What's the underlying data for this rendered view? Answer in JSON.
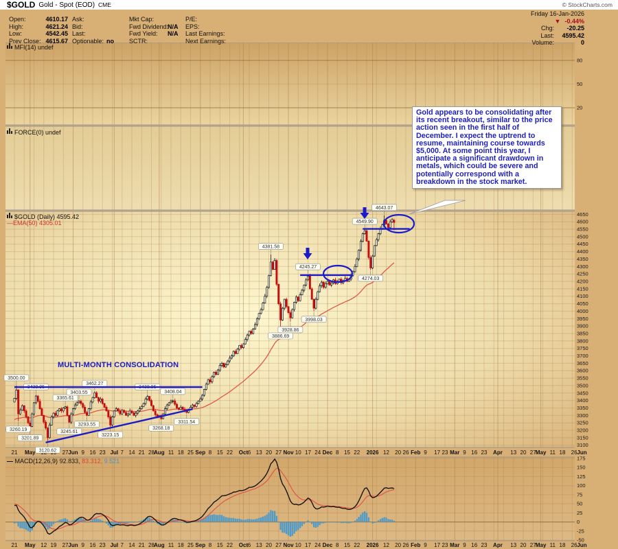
{
  "title": {
    "symbol": "$GOLD",
    "name": "Gold - Spot (EOD)",
    "exchange": "CME",
    "copyright": "© StockCharts.com"
  },
  "quote": {
    "date": "Friday 16-Jan-2026",
    "change_arrow": "▼",
    "change_pct": "-0.44%",
    "chg_label": "Chg:",
    "chg": "-20.25",
    "last_label": "Last:",
    "last": "4595.42",
    "volume_label": "Volume:",
    "volume": "0",
    "col1": [
      {
        "label": "Open:",
        "value": "4610.17"
      },
      {
        "label": "High:",
        "value": "4621.24"
      },
      {
        "label": "Low:",
        "value": "4542.45"
      },
      {
        "label": "Prev Close:",
        "value": "4615.67"
      }
    ],
    "col2": [
      {
        "label": "Ask:",
        "value": ""
      },
      {
        "label": "Bid:",
        "value": ""
      },
      {
        "label": "Last:",
        "value": ""
      },
      {
        "label": "Optionable:",
        "value": "no"
      }
    ],
    "col3": [
      {
        "label": "Mkt Cap:",
        "value": ""
      },
      {
        "label": "Fwd Dividend:",
        "value": "N/A"
      },
      {
        "label": "Fwd Yield:",
        "value": "N/A"
      },
      {
        "label": "SCTR:",
        "value": ""
      }
    ],
    "col4": [
      {
        "label": "P/E:",
        "value": ""
      },
      {
        "label": "EPS:",
        "value": ""
      },
      {
        "label": "Last Earnings:",
        "value": ""
      },
      {
        "label": "Next Earnings:",
        "value": ""
      }
    ]
  },
  "indicators": {
    "mfi": "MFI(14) undef",
    "force": "FORCE(0) undef",
    "main": "$GOLD (Daily) 4595.42",
    "ema_dash": "—",
    "ema": "EMA(50) 4305.01",
    "macd_dash": "—",
    "macd_name": "MACD(12,26,9)",
    "macd_val1": "92.833,",
    "macd_val2": "83.312,",
    "macd_val3": "9.521"
  },
  "annotations": {
    "consolidation_text": "MULTI-MONTH CONSOLIDATION",
    "callout_text": "Gold appears to be consolidating after its recent breakout, similar to the price action seen in the first half of December. I expect the uptrend to resume, maintaining course towards $5,000. At some point this year, I anticipate a significant drawdown in metals, which could be severe and potentially correspond with a breakdown in the stock market."
  },
  "colors": {
    "accent_blue": "#1b1bc8",
    "annotation_text_blue": "#1f1fbe",
    "candle_up_fill": "#fdfcf0",
    "candle_up_stroke": "#151515",
    "candle_down": "#c40f0f",
    "ema_line": "#dd5a4a",
    "macd_line": "#1a1208",
    "macd_signal": "#e25548",
    "macd_histogram": "#4e9ac9",
    "change_red": "#a80a1e",
    "grid": "#a87f48",
    "separator": "#969696",
    "label_box_fill": "#fffef2",
    "label_box_stroke": "#8a8a8a"
  },
  "chart_data": {
    "type": "candlestick",
    "symbol": "$GOLD",
    "timeframe": "Daily",
    "title": "$GOLD (Daily) 4595.42",
    "y_axis": {
      "min": 3100,
      "max": 4650,
      "step": 50
    },
    "mfi_axis": {
      "labels": [
        80,
        50,
        20
      ]
    },
    "macd_axis": {
      "min": -50,
      "max": 175,
      "step": 25
    },
    "overlays": {
      "ema_period": 50,
      "macd_params": [
        12,
        26,
        9
      ]
    },
    "first_open": 3390,
    "closes": [
      3415,
      3470,
      3310,
      3335,
      3365,
      3330,
      3290,
      3250,
      3225,
      3310,
      3385,
      3430,
      3395,
      3345,
      3300,
      3255,
      3215,
      3150,
      3235,
      3290,
      3315,
      3300,
      3330,
      3345,
      3330,
      3350,
      3358,
      3300,
      3255,
      3310,
      3345,
      3370,
      3385,
      3395,
      3380,
      3355,
      3320,
      3300,
      3345,
      3390,
      3420,
      3452,
      3420,
      3395,
      3410,
      3380,
      3355,
      3330,
      3290,
      3235,
      3290,
      3330,
      3345,
      3330,
      3310,
      3335,
      3320,
      3300,
      3310,
      3330,
      3318,
      3300,
      3315,
      3330,
      3345,
      3360,
      3380,
      3410,
      3428,
      3400,
      3365,
      3330,
      3305,
      3290,
      3300,
      3278,
      3310,
      3345,
      3370,
      3385,
      3395,
      3398,
      3375,
      3350,
      3340,
      3355,
      3340,
      3330,
      3320,
      3340,
      3355,
      3370,
      3360,
      3380,
      3395,
      3410,
      3435,
      3475,
      3510,
      3540,
      3525,
      3560,
      3590,
      3575,
      3605,
      3635,
      3650,
      3625,
      3640,
      3665,
      3685,
      3700,
      3730,
      3715,
      3745,
      3770,
      3755,
      3780,
      3810,
      3840,
      3865,
      3850,
      3880,
      3910,
      3950,
      3985,
      4010,
      4055,
      4100,
      4160,
      4240,
      4330,
      4280,
      4340,
      4180,
      4050,
      3940,
      4020,
      4080,
      4030,
      3990,
      3955,
      4010,
      4060,
      4095,
      4070,
      4110,
      4140,
      4175,
      4210,
      4235,
      4150,
      4080,
      4020,
      4080,
      4130,
      4170,
      4195,
      4160,
      4185,
      4200,
      4175,
      4190,
      4210,
      4185,
      4200,
      4215,
      4190,
      4205,
      4220,
      4200,
      4215,
      4240,
      4265,
      4300,
      4350,
      4410,
      4470,
      4520,
      4540,
      4470,
      4360,
      4290,
      4370,
      4440,
      4480,
      4520,
      4555,
      4580,
      4610,
      4585,
      4560,
      4600,
      4615.67,
      4595.42
    ],
    "last_candle": {
      "open": 4610.17,
      "high": 4621.24,
      "low": 4542.45,
      "close": 4595.42
    },
    "price_markers": [
      {
        "d": 1,
        "p": 3500.0,
        "side": "h",
        "label": "3500.00"
      },
      {
        "d": 2,
        "p": 3260.19,
        "side": "l",
        "label": "3260.19"
      },
      {
        "d": 8,
        "p": 3201.89,
        "side": "l",
        "label": "3201.89"
      },
      {
        "d": 11,
        "p": 3438.95,
        "side": "h",
        "label": "3438.95"
      },
      {
        "d": 17,
        "p": 3120.62,
        "side": "l",
        "label": "3120.62"
      },
      {
        "d": 26,
        "p": 3365.61,
        "side": "h",
        "label": "3365.61"
      },
      {
        "d": 28,
        "p": 3245.61,
        "side": "l",
        "label": "3245.61"
      },
      {
        "d": 33,
        "p": 3403.55,
        "side": "h",
        "label": "3403.55"
      },
      {
        "d": 37,
        "p": 3293.55,
        "side": "l",
        "label": "3293.55"
      },
      {
        "d": 41,
        "p": 3462.27,
        "side": "h",
        "label": "3462.27"
      },
      {
        "d": 49,
        "p": 3223.15,
        "side": "l",
        "label": "3223.15"
      },
      {
        "d": 68,
        "p": 3438.96,
        "side": "h",
        "label": "3438.96"
      },
      {
        "d": 75,
        "p": 3268.18,
        "side": "l",
        "label": "3268.18"
      },
      {
        "d": 81,
        "p": 3408.04,
        "side": "h",
        "label": "3408.04"
      },
      {
        "d": 88,
        "p": 3311.54,
        "side": "l",
        "label": "3311.54"
      },
      {
        "d": 131,
        "p": 4381.58,
        "side": "h",
        "label": "4381.58"
      },
      {
        "d": 136,
        "p": 3886.69,
        "side": "l",
        "label": "3886.69"
      },
      {
        "d": 141,
        "p": 3928.86,
        "side": "l",
        "label": "3928.86"
      },
      {
        "d": 150,
        "p": 4245.27,
        "side": "h",
        "label": "4245.27"
      },
      {
        "d": 153,
        "p": 3998.03,
        "side": "l",
        "label": "3998.03"
      },
      {
        "d": 179,
        "p": 4549.9,
        "side": "h",
        "label": "4549.90"
      },
      {
        "d": 182,
        "p": 4274.03,
        "side": "l",
        "label": "4274.03"
      },
      {
        "d": 189,
        "p": 4643.07,
        "side": "h",
        "label": "4643.07"
      }
    ],
    "x_ticks": [
      {
        "d": 0,
        "t": "21",
        "b": 0
      },
      {
        "d": 8,
        "t": "May",
        "b": 1
      },
      {
        "d": 15,
        "t": "12",
        "b": 0
      },
      {
        "d": 20,
        "t": "19",
        "b": 0
      },
      {
        "d": 26,
        "t": "27",
        "b": 0
      },
      {
        "d": 30,
        "t": "Jun",
        "b": 1
      },
      {
        "d": 35,
        "t": "9",
        "b": 0
      },
      {
        "d": 40,
        "t": "16",
        "b": 0
      },
      {
        "d": 45,
        "t": "23",
        "b": 0
      },
      {
        "d": 51,
        "t": "Jul",
        "b": 1
      },
      {
        "d": 55,
        "t": "7",
        "b": 0
      },
      {
        "d": 60,
        "t": "14",
        "b": 0
      },
      {
        "d": 65,
        "t": "21",
        "b": 0
      },
      {
        "d": 70,
        "t": "28",
        "b": 0
      },
      {
        "d": 74,
        "t": "Aug",
        "b": 1
      },
      {
        "d": 80,
        "t": "11",
        "b": 0
      },
      {
        "d": 85,
        "t": "18",
        "b": 0
      },
      {
        "d": 90,
        "t": "25",
        "b": 0
      },
      {
        "d": 95,
        "t": "Sep",
        "b": 1
      },
      {
        "d": 100,
        "t": "8",
        "b": 0
      },
      {
        "d": 105,
        "t": "15",
        "b": 0
      },
      {
        "d": 110,
        "t": "22",
        "b": 0
      },
      {
        "d": 117,
        "t": "Oct",
        "b": 1
      },
      {
        "d": 120,
        "t": "6",
        "b": 0
      },
      {
        "d": 125,
        "t": "13",
        "b": 0
      },
      {
        "d": 130,
        "t": "20",
        "b": 0
      },
      {
        "d": 135,
        "t": "27",
        "b": 0
      },
      {
        "d": 140,
        "t": "Nov",
        "b": 1
      },
      {
        "d": 145,
        "t": "10",
        "b": 0
      },
      {
        "d": 150,
        "t": "17",
        "b": 0
      },
      {
        "d": 155,
        "t": "24",
        "b": 0
      },
      {
        "d": 160,
        "t": "Dec",
        "b": 1
      },
      {
        "d": 165,
        "t": "8",
        "b": 0
      },
      {
        "d": 170,
        "t": "15",
        "b": 0
      },
      {
        "d": 175,
        "t": "22",
        "b": 0
      },
      {
        "d": 183,
        "t": "2026",
        "b": 1
      },
      {
        "d": 190,
        "t": "12",
        "b": 0
      },
      {
        "d": 196,
        "t": "20",
        "b": 0
      },
      {
        "d": 200,
        "t": "26",
        "b": 0
      },
      {
        "d": 205,
        "t": "Feb",
        "b": 1
      },
      {
        "d": 210,
        "t": "9",
        "b": 0
      },
      {
        "d": 216,
        "t": "17",
        "b": 0
      },
      {
        "d": 220,
        "t": "23",
        "b": 0
      },
      {
        "d": 225,
        "t": "Mar",
        "b": 1
      },
      {
        "d": 230,
        "t": "9",
        "b": 0
      },
      {
        "d": 235,
        "t": "16",
        "b": 0
      },
      {
        "d": 240,
        "t": "23",
        "b": 0
      },
      {
        "d": 247,
        "t": "Apr",
        "b": 1
      },
      {
        "d": 255,
        "t": "13",
        "b": 0
      },
      {
        "d": 260,
        "t": "20",
        "b": 0
      },
      {
        "d": 265,
        "t": "27",
        "b": 0
      },
      {
        "d": 269,
        "t": "May",
        "b": 1
      },
      {
        "d": 275,
        "t": "11",
        "b": 0
      },
      {
        "d": 280,
        "t": "18",
        "b": 0
      },
      {
        "d": 286,
        "t": "26",
        "b": 0
      },
      {
        "d": 290,
        "t": "Jun",
        "b": 1
      },
      {
        "d": 295,
        "t": "8",
        "b": 0
      }
    ],
    "month_grid_days": [
      8,
      30,
      51,
      74,
      95,
      117,
      140,
      160,
      183,
      205,
      225,
      247,
      269,
      290
    ],
    "blue_lines": [
      {
        "d1": 0,
        "p1": 3490,
        "d2": 96,
        "p2": 3490
      },
      {
        "d1": 16,
        "p1": 3118,
        "d2": 91,
        "p2": 3342
      },
      {
        "d1": 146,
        "p1": 4242,
        "d2": 172,
        "p2": 4242
      },
      {
        "d1": 178,
        "p1": 4552,
        "d2": 202,
        "p2": 4552
      }
    ],
    "ellipses": [
      {
        "cx": 492,
        "cy": 399,
        "rx": 21,
        "ry": 12
      },
      {
        "cx": 581,
        "cy": 326,
        "rx": 22,
        "ry": 13
      }
    ],
    "arrows": [
      {
        "x": 448,
        "y": 361
      },
      {
        "x": 531,
        "y": 302
      }
    ],
    "callout_pointer": [
      648,
      292,
      678,
      292,
      596,
      312
    ]
  }
}
